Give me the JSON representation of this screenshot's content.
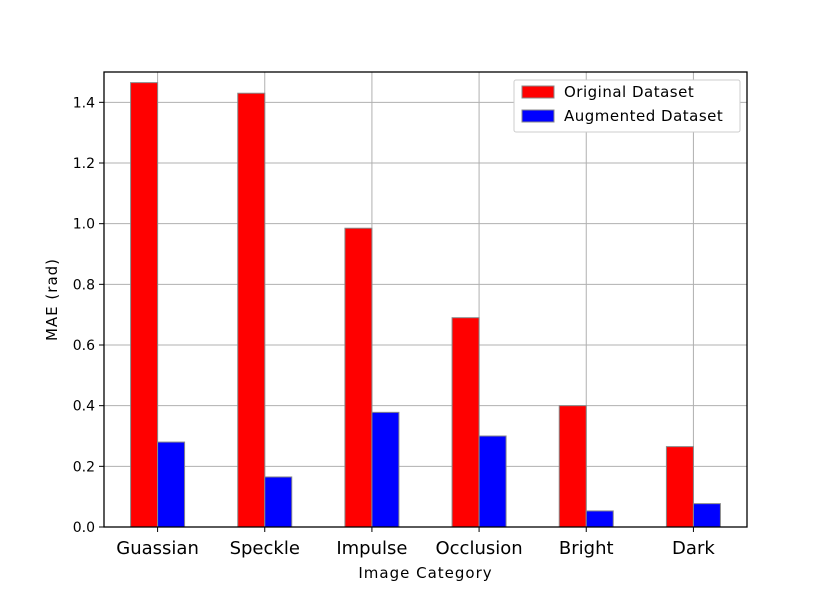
{
  "chart_data": {
    "type": "bar",
    "title": "",
    "xlabel": "Image Category",
    "ylabel": "MAE (rad)",
    "categories": [
      "Guassian",
      "Speckle",
      "Impulse",
      "Occlusion",
      "Bright",
      "Dark"
    ],
    "series": [
      {
        "name": "Original Dataset",
        "color": "#ff0000",
        "values": [
          1.465,
          1.43,
          0.985,
          0.69,
          0.4,
          0.265
        ]
      },
      {
        "name": "Augmented Dataset",
        "color": "#0000ff",
        "values": [
          0.28,
          0.165,
          0.378,
          0.3,
          0.053,
          0.077
        ]
      }
    ],
    "ylim": [
      0,
      1.5
    ],
    "yticks": [
      "0.0",
      "0.2",
      "0.4",
      "0.6",
      "0.8",
      "1.0",
      "1.2",
      "1.4"
    ],
    "grid": true,
    "legend_position": "top-right"
  }
}
